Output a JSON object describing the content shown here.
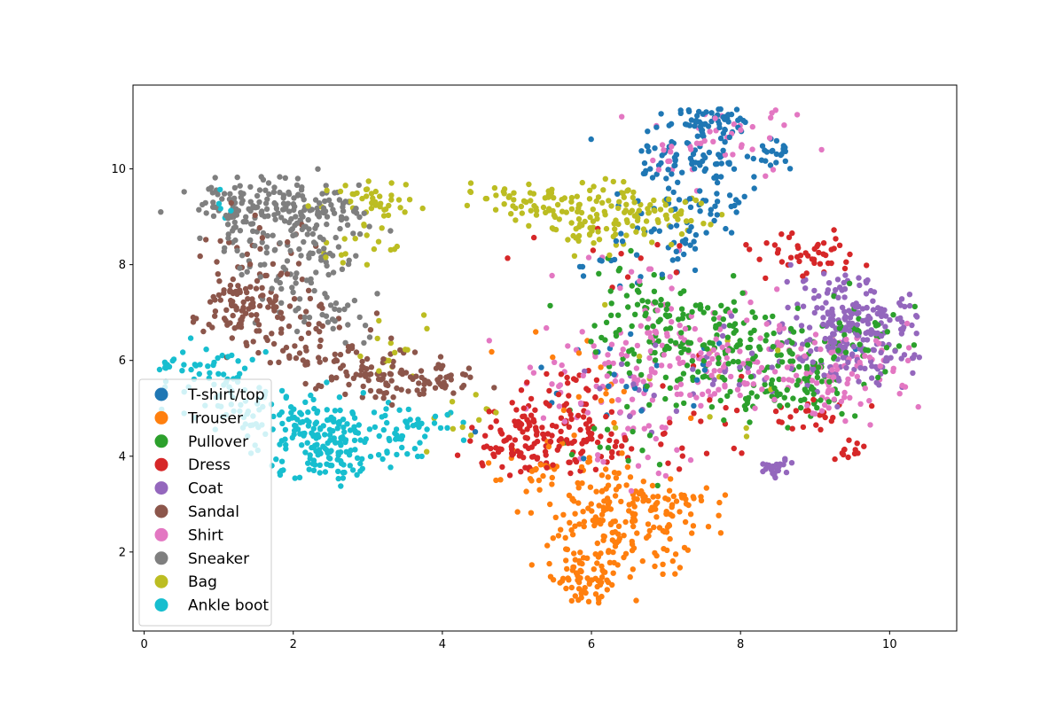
{
  "chart_data": {
    "type": "scatter",
    "title": "",
    "xlabel": "",
    "ylabel": "",
    "xlim": [
      -0.15,
      10.9
    ],
    "ylim": [
      0.35,
      11.75
    ],
    "x_ticks": [
      0,
      2,
      4,
      6,
      8,
      10
    ],
    "y_ticks": [
      2,
      4,
      6,
      8,
      10
    ],
    "grid": false,
    "legend_position": "lower-left",
    "random_seed": 20240517,
    "series": [
      {
        "name": "T-shirt/top",
        "color": "#1f77b4",
        "clusters": [
          {
            "cx": 7.6,
            "cy": 10.95,
            "sx": 0.3,
            "sy": 0.18,
            "n": 60
          },
          {
            "cx": 7.4,
            "cy": 10.1,
            "sx": 0.45,
            "sy": 0.35,
            "n": 80
          },
          {
            "cx": 7.2,
            "cy": 9.0,
            "sx": 0.5,
            "sy": 0.45,
            "n": 55
          },
          {
            "cx": 8.45,
            "cy": 10.4,
            "sx": 0.15,
            "sy": 0.15,
            "n": 20
          },
          {
            "cx": 6.6,
            "cy": 8.1,
            "sx": 0.5,
            "sy": 0.4,
            "n": 20
          },
          {
            "cx": 6.5,
            "cy": 5.5,
            "sx": 1.2,
            "sy": 0.9,
            "n": 25
          }
        ]
      },
      {
        "name": "Trouser",
        "color": "#ff7f0e",
        "clusters": [
          {
            "cx": 6.3,
            "cy": 2.5,
            "sx": 0.5,
            "sy": 0.55,
            "n": 150
          },
          {
            "cx": 5.9,
            "cy": 1.4,
            "sx": 0.2,
            "sy": 0.3,
            "n": 60
          },
          {
            "cx": 6.9,
            "cy": 2.9,
            "sx": 0.45,
            "sy": 0.35,
            "n": 60
          },
          {
            "cx": 5.6,
            "cy": 3.6,
            "sx": 0.45,
            "sy": 0.3,
            "n": 35
          },
          {
            "cx": 5.9,
            "cy": 5.4,
            "sx": 0.5,
            "sy": 0.6,
            "n": 18
          }
        ]
      },
      {
        "name": "Pullover",
        "color": "#2ca02c",
        "clusters": [
          {
            "cx": 7.6,
            "cy": 6.3,
            "sx": 0.7,
            "sy": 0.5,
            "n": 170
          },
          {
            "cx": 8.7,
            "cy": 5.5,
            "sx": 0.45,
            "sy": 0.35,
            "n": 90
          },
          {
            "cx": 9.6,
            "cy": 6.7,
            "sx": 0.4,
            "sy": 0.4,
            "n": 45
          },
          {
            "cx": 6.6,
            "cy": 7.3,
            "sx": 0.5,
            "sy": 0.4,
            "n": 35
          },
          {
            "cx": 6.4,
            "cy": 4.3,
            "sx": 0.4,
            "sy": 0.5,
            "n": 15
          }
        ]
      },
      {
        "name": "Dress",
        "color": "#d62728",
        "clusters": [
          {
            "cx": 5.0,
            "cy": 4.4,
            "sx": 0.3,
            "sy": 0.4,
            "n": 80
          },
          {
            "cx": 5.8,
            "cy": 4.3,
            "sx": 0.5,
            "sy": 0.3,
            "n": 80
          },
          {
            "cx": 5.6,
            "cy": 5.3,
            "sx": 0.3,
            "sy": 0.35,
            "n": 30
          },
          {
            "cx": 8.9,
            "cy": 8.2,
            "sx": 0.35,
            "sy": 0.25,
            "n": 45
          },
          {
            "cx": 9.0,
            "cy": 4.8,
            "sx": 0.3,
            "sy": 0.3,
            "n": 20
          },
          {
            "cx": 9.45,
            "cy": 4.1,
            "sx": 0.12,
            "sy": 0.12,
            "n": 12
          },
          {
            "cx": 7.5,
            "cy": 5.0,
            "sx": 0.6,
            "sy": 0.6,
            "n": 25
          },
          {
            "cx": 6.4,
            "cy": 8.2,
            "sx": 0.6,
            "sy": 0.5,
            "n": 12
          }
        ]
      },
      {
        "name": "Coat",
        "color": "#9467bd",
        "clusters": [
          {
            "cx": 9.6,
            "cy": 6.5,
            "sx": 0.4,
            "sy": 0.5,
            "n": 190
          },
          {
            "cx": 9.2,
            "cy": 7.3,
            "sx": 0.4,
            "sy": 0.4,
            "n": 40
          },
          {
            "cx": 8.5,
            "cy": 3.75,
            "sx": 0.1,
            "sy": 0.1,
            "n": 25
          },
          {
            "cx": 8.3,
            "cy": 6.0,
            "sx": 0.6,
            "sy": 0.5,
            "n": 35
          },
          {
            "cx": 6.9,
            "cy": 5.3,
            "sx": 0.5,
            "sy": 0.6,
            "n": 15
          }
        ]
      },
      {
        "name": "Sandal",
        "color": "#8c564b",
        "clusters": [
          {
            "cx": 1.5,
            "cy": 7.25,
            "sx": 0.35,
            "sy": 0.35,
            "n": 80
          },
          {
            "cx": 1.2,
            "cy": 6.9,
            "sx": 0.3,
            "sy": 0.25,
            "n": 30
          },
          {
            "cx": 3.4,
            "cy": 5.6,
            "sx": 0.4,
            "sy": 0.2,
            "n": 65
          },
          {
            "cx": 2.6,
            "cy": 5.9,
            "sx": 0.5,
            "sy": 0.35,
            "n": 40
          },
          {
            "cx": 2.0,
            "cy": 6.6,
            "sx": 0.5,
            "sy": 0.5,
            "n": 40
          },
          {
            "cx": 4.1,
            "cy": 5.5,
            "sx": 0.2,
            "sy": 0.15,
            "n": 20
          },
          {
            "cx": 1.5,
            "cy": 8.5,
            "sx": 0.35,
            "sy": 0.4,
            "n": 20
          }
        ]
      },
      {
        "name": "Shirt",
        "color": "#e377c2",
        "clusters": [
          {
            "cx": 7.4,
            "cy": 6.1,
            "sx": 0.8,
            "sy": 0.55,
            "n": 150
          },
          {
            "cx": 9.3,
            "cy": 5.8,
            "sx": 0.55,
            "sy": 0.5,
            "n": 90
          },
          {
            "cx": 7.6,
            "cy": 10.6,
            "sx": 0.6,
            "sy": 0.35,
            "n": 45
          },
          {
            "cx": 6.1,
            "cy": 5.5,
            "sx": 0.5,
            "sy": 0.5,
            "n": 30
          },
          {
            "cx": 6.6,
            "cy": 4.1,
            "sx": 0.5,
            "sy": 0.4,
            "n": 20
          },
          {
            "cx": 6.8,
            "cy": 7.6,
            "sx": 0.6,
            "sy": 0.5,
            "n": 15
          }
        ]
      },
      {
        "name": "Sneaker",
        "color": "#7f7f7f",
        "clusters": [
          {
            "cx": 1.5,
            "cy": 9.2,
            "sx": 0.4,
            "sy": 0.35,
            "n": 120
          },
          {
            "cx": 2.4,
            "cy": 9.2,
            "sx": 0.35,
            "sy": 0.35,
            "n": 70
          },
          {
            "cx": 2.1,
            "cy": 8.1,
            "sx": 0.4,
            "sy": 0.45,
            "n": 70
          },
          {
            "cx": 2.4,
            "cy": 7.1,
            "sx": 0.35,
            "sy": 0.3,
            "n": 30
          },
          {
            "cx": 1.1,
            "cy": 8.6,
            "sx": 0.2,
            "sy": 0.3,
            "n": 15
          }
        ]
      },
      {
        "name": "Bag",
        "color": "#bcbd22",
        "clusters": [
          {
            "cx": 3.1,
            "cy": 9.4,
            "sx": 0.3,
            "sy": 0.18,
            "n": 40
          },
          {
            "cx": 5.3,
            "cy": 9.35,
            "sx": 0.5,
            "sy": 0.18,
            "n": 60
          },
          {
            "cx": 6.1,
            "cy": 9.0,
            "sx": 0.4,
            "sy": 0.3,
            "n": 70
          },
          {
            "cx": 6.9,
            "cy": 9.1,
            "sx": 0.4,
            "sy": 0.25,
            "n": 40
          },
          {
            "cx": 2.9,
            "cy": 8.4,
            "sx": 0.3,
            "sy": 0.35,
            "n": 20
          },
          {
            "cx": 3.3,
            "cy": 6.3,
            "sx": 0.3,
            "sy": 0.35,
            "n": 15
          },
          {
            "cx": 6.5,
            "cy": 8.4,
            "sx": 0.4,
            "sy": 0.3,
            "n": 15
          },
          {
            "cx": 4.3,
            "cy": 4.7,
            "sx": 0.4,
            "sy": 0.35,
            "n": 12
          },
          {
            "cx": 7.5,
            "cy": 5.5,
            "sx": 0.8,
            "sy": 0.7,
            "n": 12
          }
        ]
      },
      {
        "name": "Ankle boot",
        "color": "#17becf",
        "clusters": [
          {
            "cx": 2.4,
            "cy": 4.4,
            "sx": 0.45,
            "sy": 0.4,
            "n": 150
          },
          {
            "cx": 1.3,
            "cy": 5.1,
            "sx": 0.5,
            "sy": 0.4,
            "n": 60
          },
          {
            "cx": 3.5,
            "cy": 4.6,
            "sx": 0.45,
            "sy": 0.35,
            "n": 50
          },
          {
            "cx": 0.8,
            "cy": 5.8,
            "sx": 0.35,
            "sy": 0.25,
            "n": 40
          },
          {
            "cx": 2.5,
            "cy": 3.75,
            "sx": 0.3,
            "sy": 0.12,
            "n": 25
          },
          {
            "cx": 1.0,
            "cy": 9.2,
            "sx": 0.1,
            "sy": 0.15,
            "n": 5
          }
        ]
      }
    ]
  }
}
